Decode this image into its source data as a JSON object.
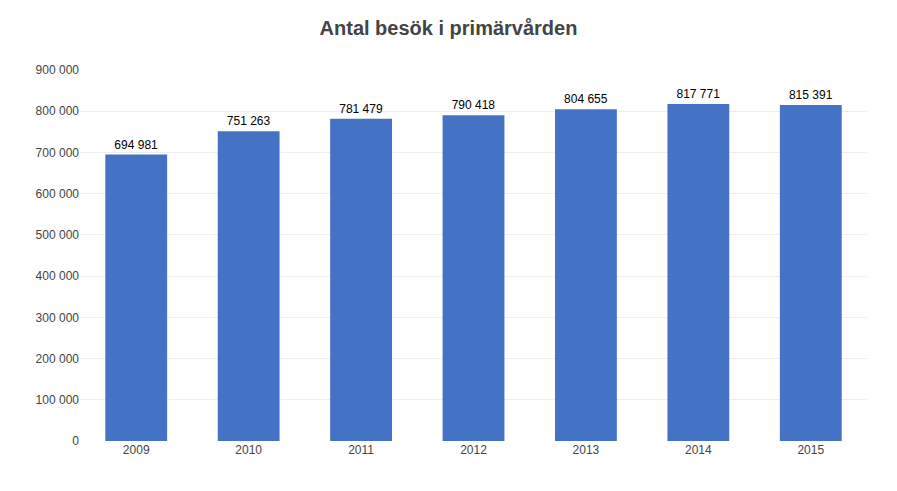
{
  "chart_data": {
    "type": "bar",
    "title": "Antal besök i primärvården",
    "categories": [
      "2009",
      "2010",
      "2011",
      "2012",
      "2013",
      "2014",
      "2015"
    ],
    "values": [
      694981,
      751263,
      781479,
      790418,
      804655,
      817771,
      815391
    ],
    "value_labels": [
      "694 981",
      "751 263",
      "781 479",
      "790 418",
      "804 655",
      "817 771",
      "815 391"
    ],
    "color": "#4472C4",
    "ylim": [
      0,
      900000
    ],
    "yticks": [
      0,
      {
        "value": 100000,
        "label": "100 000"
      },
      {
        "value": 200000,
        "label": "200 000"
      },
      {
        "value": 300000,
        "label": "300 000"
      },
      {
        "value": 400000,
        "label": "400 000"
      },
      {
        "value": 500000,
        "label": "500 000"
      },
      {
        "value": 600000,
        "label": "600 000"
      },
      {
        "value": 700000,
        "label": "700 000"
      },
      {
        "value": 800000,
        "label": "800 000"
      },
      {
        "value": 900000,
        "label": "900 000"
      }
    ],
    "grid": true,
    "data_labels": true
  }
}
